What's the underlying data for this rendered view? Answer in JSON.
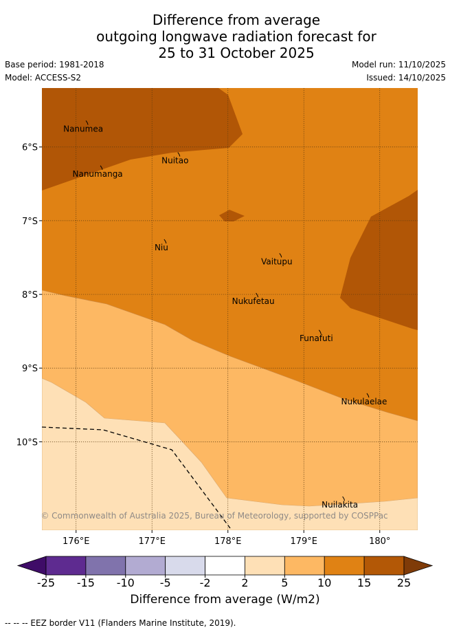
{
  "title": {
    "line1": "Difference from average",
    "line2": "outgoing longwave radiation forecast for",
    "line3": "25 to 31 October 2025"
  },
  "meta": {
    "base_period": "Base period: 1981-2018",
    "model": "Model: ACCESS-S2",
    "model_run": "Model run: 11/10/2025",
    "issued": "Issued: 14/10/2025"
  },
  "map": {
    "lon_range": [
      175.55,
      180.5
    ],
    "lat_range": [
      -11.2,
      -5.2
    ],
    "lon_ticks": [
      {
        "value": 176,
        "label": "176°E"
      },
      {
        "value": 177,
        "label": "177°E"
      },
      {
        "value": 178,
        "label": "178°E"
      },
      {
        "value": 179,
        "label": "179°E"
      },
      {
        "value": 180,
        "label": "180°"
      }
    ],
    "lat_ticks": [
      {
        "value": -6,
        "label": "6°S"
      },
      {
        "value": -7,
        "label": "7°S"
      },
      {
        "value": -8,
        "label": "8°S"
      },
      {
        "value": -9,
        "label": "9°S"
      },
      {
        "value": -10,
        "label": "10°S"
      }
    ],
    "places": [
      {
        "name": "Nanumea",
        "lon": 176.13,
        "lat": -5.68
      },
      {
        "name": "Nuitao",
        "lon": 177.34,
        "lat": -6.11
      },
      {
        "name": "Nanumanga",
        "lon": 176.32,
        "lat": -6.29
      },
      {
        "name": "Niu",
        "lon": 177.16,
        "lat": -7.29
      },
      {
        "name": "Vaitupu",
        "lon": 178.68,
        "lat": -7.48
      },
      {
        "name": "Nukufetau",
        "lon": 178.37,
        "lat": -8.02
      },
      {
        "name": "Funafuti",
        "lon": 179.2,
        "lat": -8.52
      },
      {
        "name": "Nukulaelae",
        "lon": 179.83,
        "lat": -9.38
      },
      {
        "name": "Nuilakita",
        "lon": 179.51,
        "lat": -10.78
      }
    ],
    "copyright": "© Commonwealth of Australia 2025, Bureau of Meteorology, supported by COSPPac",
    "colors": {
      "band_15_25": "#b15606",
      "band_10_15": "#e08214",
      "band_5_10": "#fdb863",
      "band_2_5": "#fee0b6"
    }
  },
  "colorbar": {
    "tick_labels": [
      "-25",
      "-15",
      "-10",
      "-5",
      "-2",
      "2",
      "5",
      "10",
      "15",
      "25"
    ],
    "colors": [
      "#3f0c68",
      "#5e2b90",
      "#8073ac",
      "#b2abd2",
      "#d8daeb",
      "#ffffff",
      "#fee0b6",
      "#fdb863",
      "#e08214",
      "#b35806",
      "#7f3b08"
    ],
    "title": "Difference from average (W/m2)"
  },
  "footer": "--  --  -- EEZ border V11 (Flanders Marine Institute, 2019)."
}
